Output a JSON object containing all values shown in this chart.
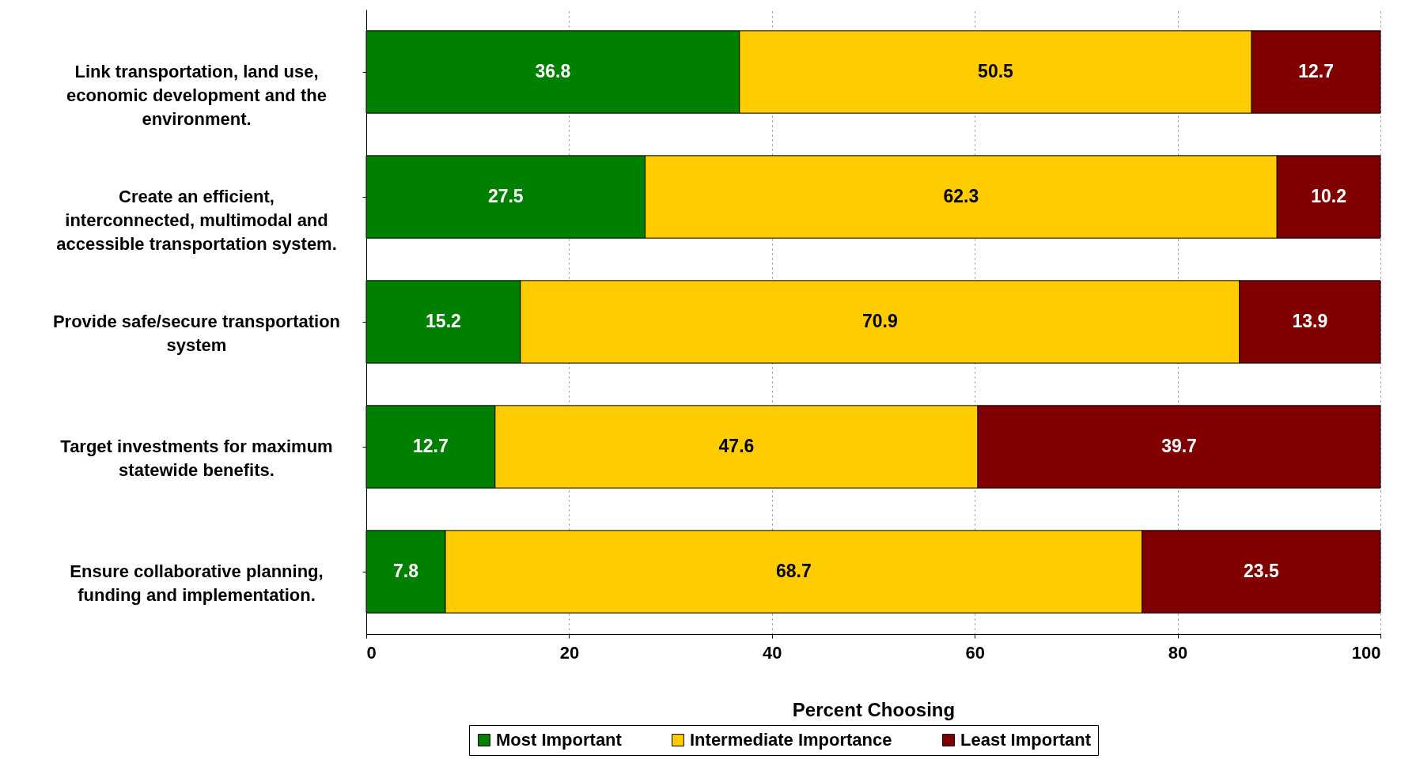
{
  "chart_data": {
    "type": "bar",
    "orientation": "horizontal",
    "stacked": true,
    "data_labels": true,
    "xlabel": "Percent Choosing",
    "categories": [
      "Link transportation, land use, economic development and the environment.",
      "Create an efficient, interconnected, multimodal and accessible transportation system.",
      "Provide safe/secure transportation system",
      "Target investments for maximum statewide benefits.",
      "Ensure collaborative planning, funding and implementation."
    ],
    "series": [
      {
        "name": "Most Important",
        "color": "#008000",
        "values": [
          36.8,
          27.5,
          15.2,
          12.7,
          7.8
        ]
      },
      {
        "name": "Intermediate Importance",
        "color": "#ffcc00",
        "values": [
          50.5,
          62.3,
          70.9,
          47.6,
          68.7
        ]
      },
      {
        "name": "Least Important",
        "color": "#800000",
        "values": [
          12.7,
          10.2,
          13.9,
          39.7,
          23.5
        ]
      }
    ],
    "xlim": [
      0,
      100
    ],
    "xticks": [
      0,
      20,
      40,
      60,
      80,
      100
    ],
    "grid": "x",
    "legend": "bottom"
  }
}
